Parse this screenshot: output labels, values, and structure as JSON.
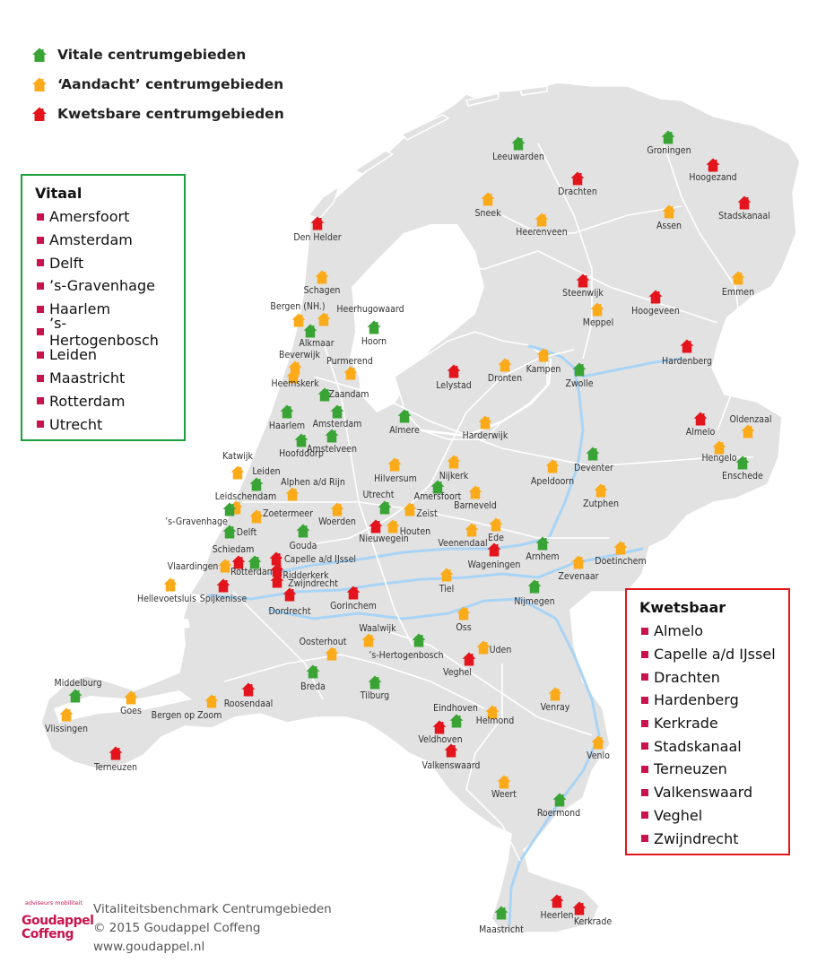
{
  "legend": [
    {
      "label": "Vitale centrumgebieden",
      "status": "vital"
    },
    {
      "label": "‘Aandacht’ centrumgebieden",
      "status": "attention"
    },
    {
      "label": "Kwetsbare centrumgebieden",
      "status": "vulnerable"
    }
  ],
  "colors": {
    "vital": "#3aa335",
    "attention": "#fbaa1a",
    "vulnerable": "#e3141b",
    "land": "#e2e2e2",
    "river": "#a9d4f5",
    "bullet": "#c8134c"
  },
  "vitaal_box": {
    "title": "Vitaal",
    "items": [
      "Amersfoort",
      "Amsterdam",
      "Delft",
      "’s-Gravenhage",
      "Haarlem",
      "’s-Hertogenbosch",
      "Leiden",
      "Maastricht",
      "Rotterdam",
      "Utrecht"
    ]
  },
  "kwetsbaar_box": {
    "title": "Kwetsbaar",
    "items": [
      "Almelo",
      "Capelle a/d IJssel",
      "Drachten",
      "Hardenberg",
      "Kerkrade",
      "Stadskanaal",
      "Terneuzen",
      "Valkenswaard",
      "Veghel",
      "Zwijndrecht"
    ]
  },
  "cities": [
    {
      "name": "Leeuwarden",
      "status": "vital"
    },
    {
      "name": "Groningen",
      "status": "vital"
    },
    {
      "name": "Hoogezand",
      "status": "vulnerable"
    },
    {
      "name": "Drachten",
      "status": "vulnerable"
    },
    {
      "name": "Sneek",
      "status": "attention"
    },
    {
      "name": "Heerenveen",
      "status": "attention"
    },
    {
      "name": "Assen",
      "status": "attention"
    },
    {
      "name": "Stadskanaal",
      "status": "vulnerable"
    },
    {
      "name": "Den Helder",
      "status": "vulnerable"
    },
    {
      "name": "Schagen",
      "status": "attention"
    },
    {
      "name": "Heerhugowaard",
      "status": "attention"
    },
    {
      "name": "Bergen (NH.)",
      "status": "attention"
    },
    {
      "name": "Alkmaar",
      "status": "vital"
    },
    {
      "name": "Hoorn",
      "status": "vital"
    },
    {
      "name": "Steenwijk",
      "status": "vulnerable"
    },
    {
      "name": "Meppel",
      "status": "attention"
    },
    {
      "name": "Hoogeveen",
      "status": "vulnerable"
    },
    {
      "name": "Emmen",
      "status": "attention"
    },
    {
      "name": "Beverwijk",
      "status": "attention"
    },
    {
      "name": "Heemskerk",
      "status": "attention"
    },
    {
      "name": "Purmerend",
      "status": "attention"
    },
    {
      "name": "Zaandam",
      "status": "vital"
    },
    {
      "name": "Lelystad",
      "status": "vulnerable"
    },
    {
      "name": "Dronten",
      "status": "attention"
    },
    {
      "name": "Kampen",
      "status": "attention"
    },
    {
      "name": "Zwolle",
      "status": "vital"
    },
    {
      "name": "Hardenberg",
      "status": "vulnerable"
    },
    {
      "name": "Haarlem",
      "status": "vital"
    },
    {
      "name": "Amsterdam",
      "status": "vital"
    },
    {
      "name": "Almere",
      "status": "vital"
    },
    {
      "name": "Harderwijk",
      "status": "attention"
    },
    {
      "name": "Almelo",
      "status": "vulnerable"
    },
    {
      "name": "Oldenzaal",
      "status": "attention"
    },
    {
      "name": "Hoofddorp",
      "status": "vital"
    },
    {
      "name": "Amstelveen",
      "status": "vital"
    },
    {
      "name": "Hengelo",
      "status": "attention"
    },
    {
      "name": "Enschede",
      "status": "vital"
    },
    {
      "name": "Katwijk",
      "status": "attention"
    },
    {
      "name": "Leiden",
      "status": "vital"
    },
    {
      "name": "Hilversum",
      "status": "attention"
    },
    {
      "name": "Nijkerk",
      "status": "attention"
    },
    {
      "name": "Deventer",
      "status": "vital"
    },
    {
      "name": "Apeldoorn",
      "status": "attention"
    },
    {
      "name": "Alphen a/d Rijn",
      "status": "attention"
    },
    {
      "name": "Amersfoort",
      "status": "vital"
    },
    {
      "name": "Leidschendam",
      "status": "attention"
    },
    {
      "name": "Barneveld",
      "status": "attention"
    },
    {
      "name": "Utrecht",
      "status": "vital"
    },
    {
      "name": "Zoetermeer",
      "status": "attention"
    },
    {
      "name": "Zeist",
      "status": "attention"
    },
    {
      "name": "Zutphen",
      "status": "attention"
    },
    {
      "name": "’s-Gravenhage",
      "status": "vital"
    },
    {
      "name": "Woerden",
      "status": "attention"
    },
    {
      "name": "Delft",
      "status": "vital"
    },
    {
      "name": "Nieuwegein",
      "status": "vulnerable"
    },
    {
      "name": "Houten",
      "status": "attention"
    },
    {
      "name": "Veenendaal",
      "status": "attention"
    },
    {
      "name": "Ede",
      "status": "attention"
    },
    {
      "name": "Schiedam",
      "status": "vulnerable"
    },
    {
      "name": "Gouda",
      "status": "vital"
    },
    {
      "name": "Arnhem",
      "status": "vital"
    },
    {
      "name": "Doetinchem",
      "status": "attention"
    },
    {
      "name": "Vlaardingen",
      "status": "attention"
    },
    {
      "name": "Capelle a/d IJssel",
      "status": "vulnerable"
    },
    {
      "name": "Rotterdam",
      "status": "vital"
    },
    {
      "name": "Wageningen",
      "status": "vulnerable"
    },
    {
      "name": "Zevenaar",
      "status": "attention"
    },
    {
      "name": "Ridderkerk",
      "status": "vulnerable"
    },
    {
      "name": "Zwijndrecht",
      "status": "vulnerable"
    },
    {
      "name": "Tiel",
      "status": "attention"
    },
    {
      "name": "Hellevoetsluis",
      "status": "attention"
    },
    {
      "name": "Spijkenisse",
      "status": "vulnerable"
    },
    {
      "name": "Dordrecht",
      "status": "vulnerable"
    },
    {
      "name": "Gorinchem",
      "status": "vulnerable"
    },
    {
      "name": "Nijmegen",
      "status": "vital"
    },
    {
      "name": "Oss",
      "status": "attention"
    },
    {
      "name": "Waalwijk",
      "status": "attention"
    },
    {
      "name": "Oosterhout",
      "status": "attention"
    },
    {
      "name": "’s-Hertogenbosch",
      "status": "vital"
    },
    {
      "name": "Uden",
      "status": "attention"
    },
    {
      "name": "Veghel",
      "status": "vulnerable"
    },
    {
      "name": "Breda",
      "status": "vital"
    },
    {
      "name": "Middelburg",
      "status": "vital"
    },
    {
      "name": "Tilburg",
      "status": "vital"
    },
    {
      "name": "Goes",
      "status": "attention"
    },
    {
      "name": "Roosendaal",
      "status": "vulnerable"
    },
    {
      "name": "Bergen op Zoom",
      "status": "attention"
    },
    {
      "name": "Venray",
      "status": "attention"
    },
    {
      "name": "Vlissingen",
      "status": "attention"
    },
    {
      "name": "Eindhoven",
      "status": "vital"
    },
    {
      "name": "Helmond",
      "status": "attention"
    },
    {
      "name": "Veldhoven",
      "status": "vulnerable"
    },
    {
      "name": "Terneuzen",
      "status": "vulnerable"
    },
    {
      "name": "Valkenswaard",
      "status": "vulnerable"
    },
    {
      "name": "Venlo",
      "status": "attention"
    },
    {
      "name": "Weert",
      "status": "attention"
    },
    {
      "name": "Roermond",
      "status": "vital"
    },
    {
      "name": "Heerlen",
      "status": "vulnerable"
    },
    {
      "name": "Kerkrade",
      "status": "vulnerable"
    },
    {
      "name": "Maastricht",
      "status": "vital"
    }
  ],
  "footer": {
    "logo_small": "adviseurs mobiliteit",
    "logo_line1": "Goudappel",
    "logo_line2": "Coffeng",
    "line1": "Vitaliteitsbenchmark Centrumgebieden",
    "line2": "© 2015 Goudappel Coffeng",
    "line3": "www.goudappel.nl"
  }
}
